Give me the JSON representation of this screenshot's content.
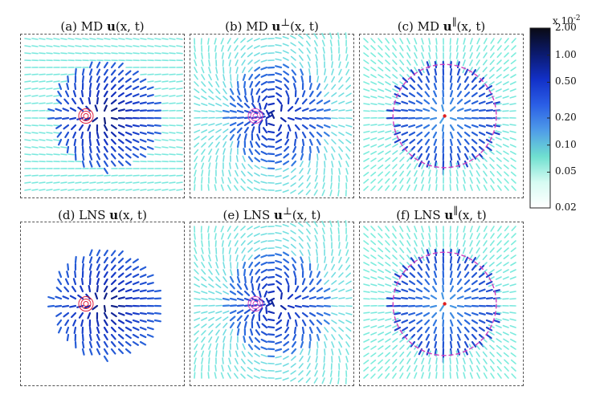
{
  "panels": [
    {
      "prefix": "(a) MD ",
      "symbol": "u",
      "sup": "",
      "suffix": "(x, t)",
      "kind": "full"
    },
    {
      "prefix": "(b) MD ",
      "symbol": "u",
      "sup": "⊥",
      "suffix": "(x, t)",
      "kind": "perp"
    },
    {
      "prefix": "(c) MD ",
      "symbol": "u",
      "sup": "∥",
      "suffix": "(x, t)",
      "kind": "par"
    },
    {
      "prefix": "(d) LNS ",
      "symbol": "u",
      "sup": "",
      "suffix": "(x, t)",
      "kind": "full"
    },
    {
      "prefix": "(e) LNS ",
      "symbol": "u",
      "sup": "⊥",
      "suffix": "(x, t)",
      "kind": "perp"
    },
    {
      "prefix": "(f) LNS ",
      "symbol": "u",
      "sup": "∥",
      "suffix": "(x, t)",
      "kind": "par"
    }
  ],
  "colorbar": {
    "exponent_base": "x 10",
    "exponent_power": "-2",
    "ticks": [
      "2.00",
      "1.00",
      "0.50",
      "0.20",
      "0.10",
      "0.05",
      "0.02"
    ],
    "colors": [
      "#0a0a14",
      "#0b1a6e",
      "#1230c8",
      "#2b5fe6",
      "#4f9de8",
      "#6fe0d0",
      "#d6fbf2",
      "#ffffff"
    ]
  }
}
